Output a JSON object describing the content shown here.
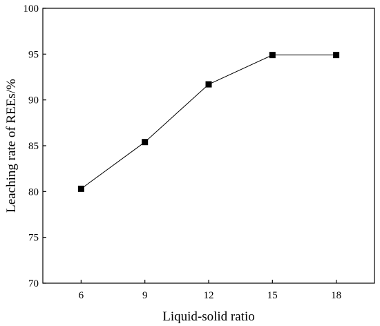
{
  "chart_data": {
    "type": "line",
    "xlabel": "Liquid-solid ratio",
    "ylabel": "Leaching rate of REEs/%",
    "xlim": [
      4.2,
      19.8
    ],
    "ylim": [
      70,
      100
    ],
    "xticks": [
      6,
      9,
      12,
      15,
      18
    ],
    "yticks": [
      70,
      75,
      80,
      85,
      90,
      95,
      100
    ],
    "grid": false,
    "marker": "square",
    "series": [
      {
        "x": [
          6,
          9,
          12,
          15,
          18
        ],
        "values": [
          80.3,
          85.4,
          91.7,
          94.9,
          94.9
        ]
      }
    ]
  }
}
